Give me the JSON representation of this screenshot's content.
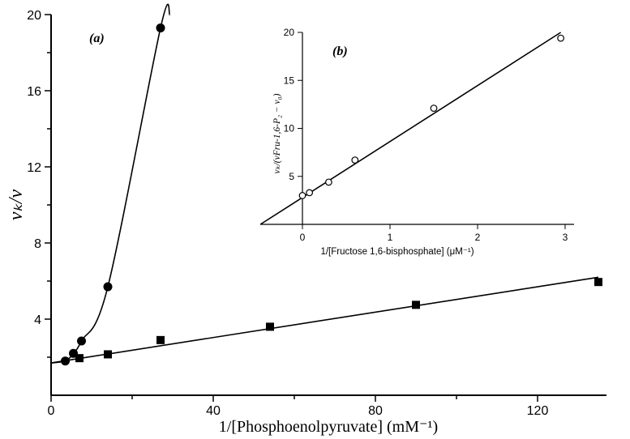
{
  "chart_data": [
    {
      "panel": "(a)",
      "type": "line",
      "xlabel": "1/[Phosphoenolpyruvate] (mM⁻¹)",
      "ylabel": "vₖ/v",
      "xlim": [
        0,
        137
      ],
      "ylim": [
        0,
        20
      ],
      "xticks": [
        0,
        40,
        80,
        120
      ],
      "yticks": [
        4,
        8,
        12,
        16,
        20
      ],
      "series": [
        {
          "marker": "circle",
          "x": [
            3.5,
            5.5,
            7.5,
            14,
            27
          ],
          "y": [
            1.8,
            2.2,
            2.85,
            5.7,
            19.3
          ]
        },
        {
          "marker": "square",
          "x": [
            7,
            14,
            27,
            54,
            90,
            135
          ],
          "y": [
            1.95,
            2.15,
            2.9,
            3.6,
            4.75,
            5.95
          ]
        }
      ]
    },
    {
      "panel": "(b)",
      "type": "scatter",
      "xlabel": "1/[Fructose 1,6-bisphosphate] (μM⁻¹)",
      "ylabel": "vₖ/(vFru-1,6-P₂ − v₀)",
      "xlim": [
        -0.55,
        3.25
      ],
      "ylim": [
        0,
        20
      ],
      "xticks": [
        0,
        1,
        2,
        3
      ],
      "yticks": [
        5,
        10,
        15,
        20
      ],
      "series": [
        {
          "marker": "open-circle",
          "x": [
            0.0,
            0.08,
            0.3,
            0.6,
            1.5,
            2.95
          ],
          "y": [
            3.0,
            3.3,
            4.4,
            6.7,
            12.1,
            19.4
          ]
        }
      ]
    }
  ]
}
